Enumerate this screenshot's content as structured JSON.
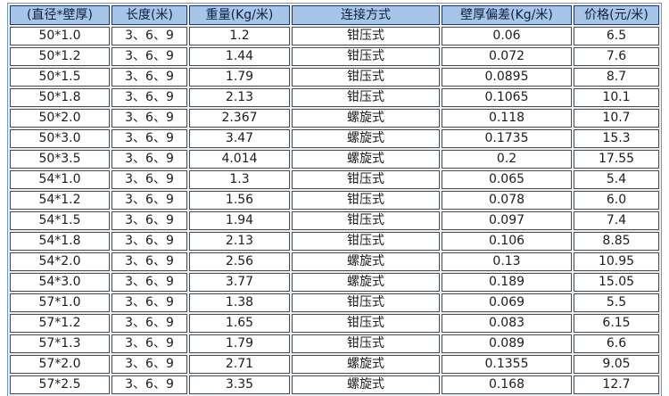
{
  "chart_data": {
    "type": "table",
    "title": "",
    "columns": [
      {
        "key": "spec",
        "label": "(直径*壁厚)"
      },
      {
        "key": "length",
        "label": "长度(米)"
      },
      {
        "key": "weight",
        "label": "重量(Kg/米)"
      },
      {
        "key": "connection",
        "label": "连接方式"
      },
      {
        "key": "deviation",
        "label": "壁厚偏差(Kg/米)"
      },
      {
        "key": "price",
        "label": "价格(元/米)"
      }
    ],
    "rows": [
      [
        "50*1.0",
        "3、6、9",
        "1.2",
        "钳压式",
        "0.06",
        "6.5"
      ],
      [
        "50*1.2",
        "3、6、9",
        "1.44",
        "钳压式",
        "0.072",
        "7.6"
      ],
      [
        "50*1.5",
        "3、6、9",
        "1.79",
        "钳压式",
        "0.0895",
        "8.7"
      ],
      [
        "50*1.8",
        "3、6、9",
        "2.13",
        "钳压式",
        "0.1065",
        "10.1"
      ],
      [
        "50*2.0",
        "3、6、9",
        "2.367",
        "螺旋式",
        "0.118",
        "10.7"
      ],
      [
        "50*3.0",
        "3、6、9",
        "3.47",
        "螺旋式",
        "0.1735",
        "15.3"
      ],
      [
        "50*3.5",
        "3、6、9",
        "4.014",
        "螺旋式",
        "0.2",
        "17.55"
      ],
      [
        "54*1.0",
        "3、6、9",
        "1.3",
        "钳压式",
        "0.065",
        "5.4"
      ],
      [
        "54*1.2",
        "3、6、9",
        "1.56",
        "钳压式",
        "0.078",
        "6.0"
      ],
      [
        "54*1.5",
        "3、6、9",
        "1.94",
        "钳压式",
        "0.097",
        "7.4"
      ],
      [
        "54*1.8",
        "3、6、9",
        "2.13",
        "钳压式",
        "0.106",
        "8.85"
      ],
      [
        "54*2.0",
        "3、6、9",
        "2.56",
        "螺旋式",
        "0.13",
        "10.95"
      ],
      [
        "54*3.0",
        "3、6、9",
        "3.77",
        "螺旋式",
        "0.189",
        "15.05"
      ],
      [
        "57*1.0",
        "3、6、9",
        "1.38",
        "钳压式",
        "0.069",
        "5.5"
      ],
      [
        "57*1.2",
        "3、6、9",
        "1.65",
        "钳压式",
        "0.083",
        "6.15"
      ],
      [
        "57*1.3",
        "3、6、9",
        "1.79",
        "钳压式",
        "0.089",
        "6.6"
      ],
      [
        "57*2.0",
        "3、6、9",
        "2.71",
        "螺旋式",
        "0.1355",
        "9.05"
      ],
      [
        "57*2.5",
        "3、6、9",
        "3.35",
        "螺旋式",
        "0.168",
        "12.7"
      ]
    ]
  },
  "colors": {
    "header_bg": "#a6c5e8",
    "header_border": "#1c3a63",
    "header_text": "#0e1f3d",
    "cell_border": "#4a4a4a",
    "cell_bg": "#ffffff",
    "outer_border": "#6f9bc9",
    "spacing_bg": "#e9eff7",
    "body_text": "#1c1c1c"
  }
}
